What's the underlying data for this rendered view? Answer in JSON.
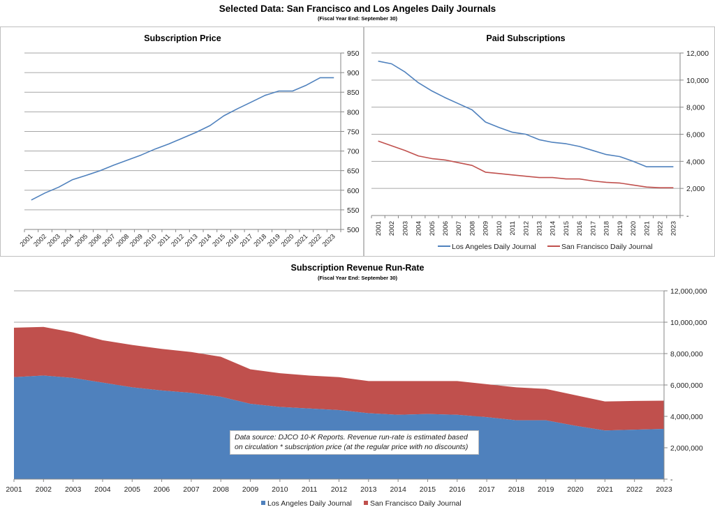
{
  "header": {
    "title": "Selected Data:  San Francisco and Los Angeles Daily Journals",
    "subtitle": "(Fiscal Year End: September 30)"
  },
  "colors": {
    "la": "#4f81bd",
    "sf": "#c0504d",
    "grid": "#a6a6a6"
  },
  "note": "Data source: DJCO 10-K Reports. Revenue run-rate is estimated based on circulation * subscription price (at the regular price with no discounts)",
  "chart_data": [
    {
      "type": "line",
      "title": "Subscription Price",
      "xlabel": "",
      "ylabel": "",
      "x": [
        "2001",
        "2002",
        "2003",
        "2004",
        "2005",
        "2006",
        "2007",
        "2008",
        "2009",
        "2010",
        "2011",
        "2012",
        "2013",
        "2014",
        "2015",
        "2016",
        "2017",
        "2018",
        "2019",
        "2020",
        "2021",
        "2022",
        "2023"
      ],
      "series": [
        {
          "name": "Subscription Price",
          "values": [
            575,
            593,
            608,
            627,
            638,
            650,
            664,
            677,
            690,
            705,
            718,
            733,
            748,
            765,
            790,
            808,
            825,
            842,
            853,
            853,
            868,
            887,
            887
          ]
        }
      ],
      "ylim": [
        500,
        950
      ],
      "yticks": [
        500,
        550,
        600,
        650,
        700,
        750,
        800,
        850,
        900,
        950
      ],
      "ytick_labels": [
        "500",
        "550",
        "600",
        "650",
        "700",
        "750",
        "800",
        "850",
        "900",
        "950"
      ],
      "y_axis_side": "right",
      "grid": true,
      "legend": "none"
    },
    {
      "type": "line",
      "title": "Paid Subscriptions",
      "xlabel": "",
      "ylabel": "",
      "x": [
        "2001",
        "2002",
        "2003",
        "2004",
        "2005",
        "2006",
        "2007",
        "2008",
        "2009",
        "2010",
        "2011",
        "2012",
        "2013",
        "2014",
        "2015",
        "2016",
        "2017",
        "2018",
        "2019",
        "2020",
        "2021",
        "2022",
        "2023"
      ],
      "series": [
        {
          "name": "Los Angeles Daily Journal",
          "values": [
            11400,
            11200,
            10600,
            9800,
            9200,
            8700,
            8250,
            7800,
            6900,
            6500,
            6150,
            6000,
            5600,
            5400,
            5300,
            5100,
            4800,
            4500,
            4350,
            4000,
            3600,
            3600,
            3600
          ]
        },
        {
          "name": "San Francisco Daily Journal",
          "values": [
            5500,
            5150,
            4800,
            4400,
            4200,
            4100,
            3900,
            3700,
            3200,
            3100,
            3000,
            2900,
            2800,
            2800,
            2700,
            2700,
            2550,
            2450,
            2400,
            2250,
            2100,
            2050,
            2050
          ]
        }
      ],
      "ylim": [
        0,
        12000
      ],
      "yticks": [
        0,
        2000,
        4000,
        6000,
        8000,
        10000,
        12000
      ],
      "ytick_labels": [
        "-",
        "2,000",
        "4,000",
        "6,000",
        "8,000",
        "10,000",
        "12,000"
      ],
      "y_axis_side": "right",
      "grid": true,
      "legend": "bottom"
    },
    {
      "type": "area",
      "stacked": true,
      "title": "Subscription Revenue Run-Rate",
      "subtitle": "(Fiscal Year End: September 30)",
      "xlabel": "",
      "ylabel": "",
      "x": [
        "2001",
        "2002",
        "2003",
        "2004",
        "2005",
        "2006",
        "2007",
        "2008",
        "2009",
        "2010",
        "2011",
        "2012",
        "2013",
        "2014",
        "2015",
        "2016",
        "2017",
        "2018",
        "2019",
        "2020",
        "2021",
        "2022",
        "2023"
      ],
      "series": [
        {
          "name": "Los Angeles Daily Journal",
          "values": [
            6500000,
            6600000,
            6450000,
            6150000,
            5850000,
            5650000,
            5500000,
            5250000,
            4800000,
            4600000,
            4500000,
            4400000,
            4200000,
            4100000,
            4150000,
            4100000,
            3950000,
            3750000,
            3750000,
            3400000,
            3100000,
            3150000,
            3200000
          ]
        },
        {
          "name": "San Francisco Daily Journal",
          "values": [
            3150000,
            3100000,
            2900000,
            2700000,
            2700000,
            2650000,
            2600000,
            2550000,
            2200000,
            2150000,
            2100000,
            2100000,
            2050000,
            2150000,
            2100000,
            2150000,
            2100000,
            2100000,
            2000000,
            1950000,
            1850000,
            1830000,
            1800000
          ]
        }
      ],
      "ylim": [
        0,
        12000000
      ],
      "yticks": [
        0,
        2000000,
        4000000,
        6000000,
        8000000,
        10000000,
        12000000
      ],
      "ytick_labels": [
        "-",
        "2,000,000",
        "4,000,000",
        "6,000,000",
        "8,000,000",
        "10,000,000",
        "12,000,000"
      ],
      "y_axis_side": "right",
      "grid": true,
      "legend": "bottom",
      "annotation": "Data source: DJCO 10-K Reports. Revenue run-rate is estimated based on circulation * subscription price (at the regular price with no discounts)"
    }
  ]
}
